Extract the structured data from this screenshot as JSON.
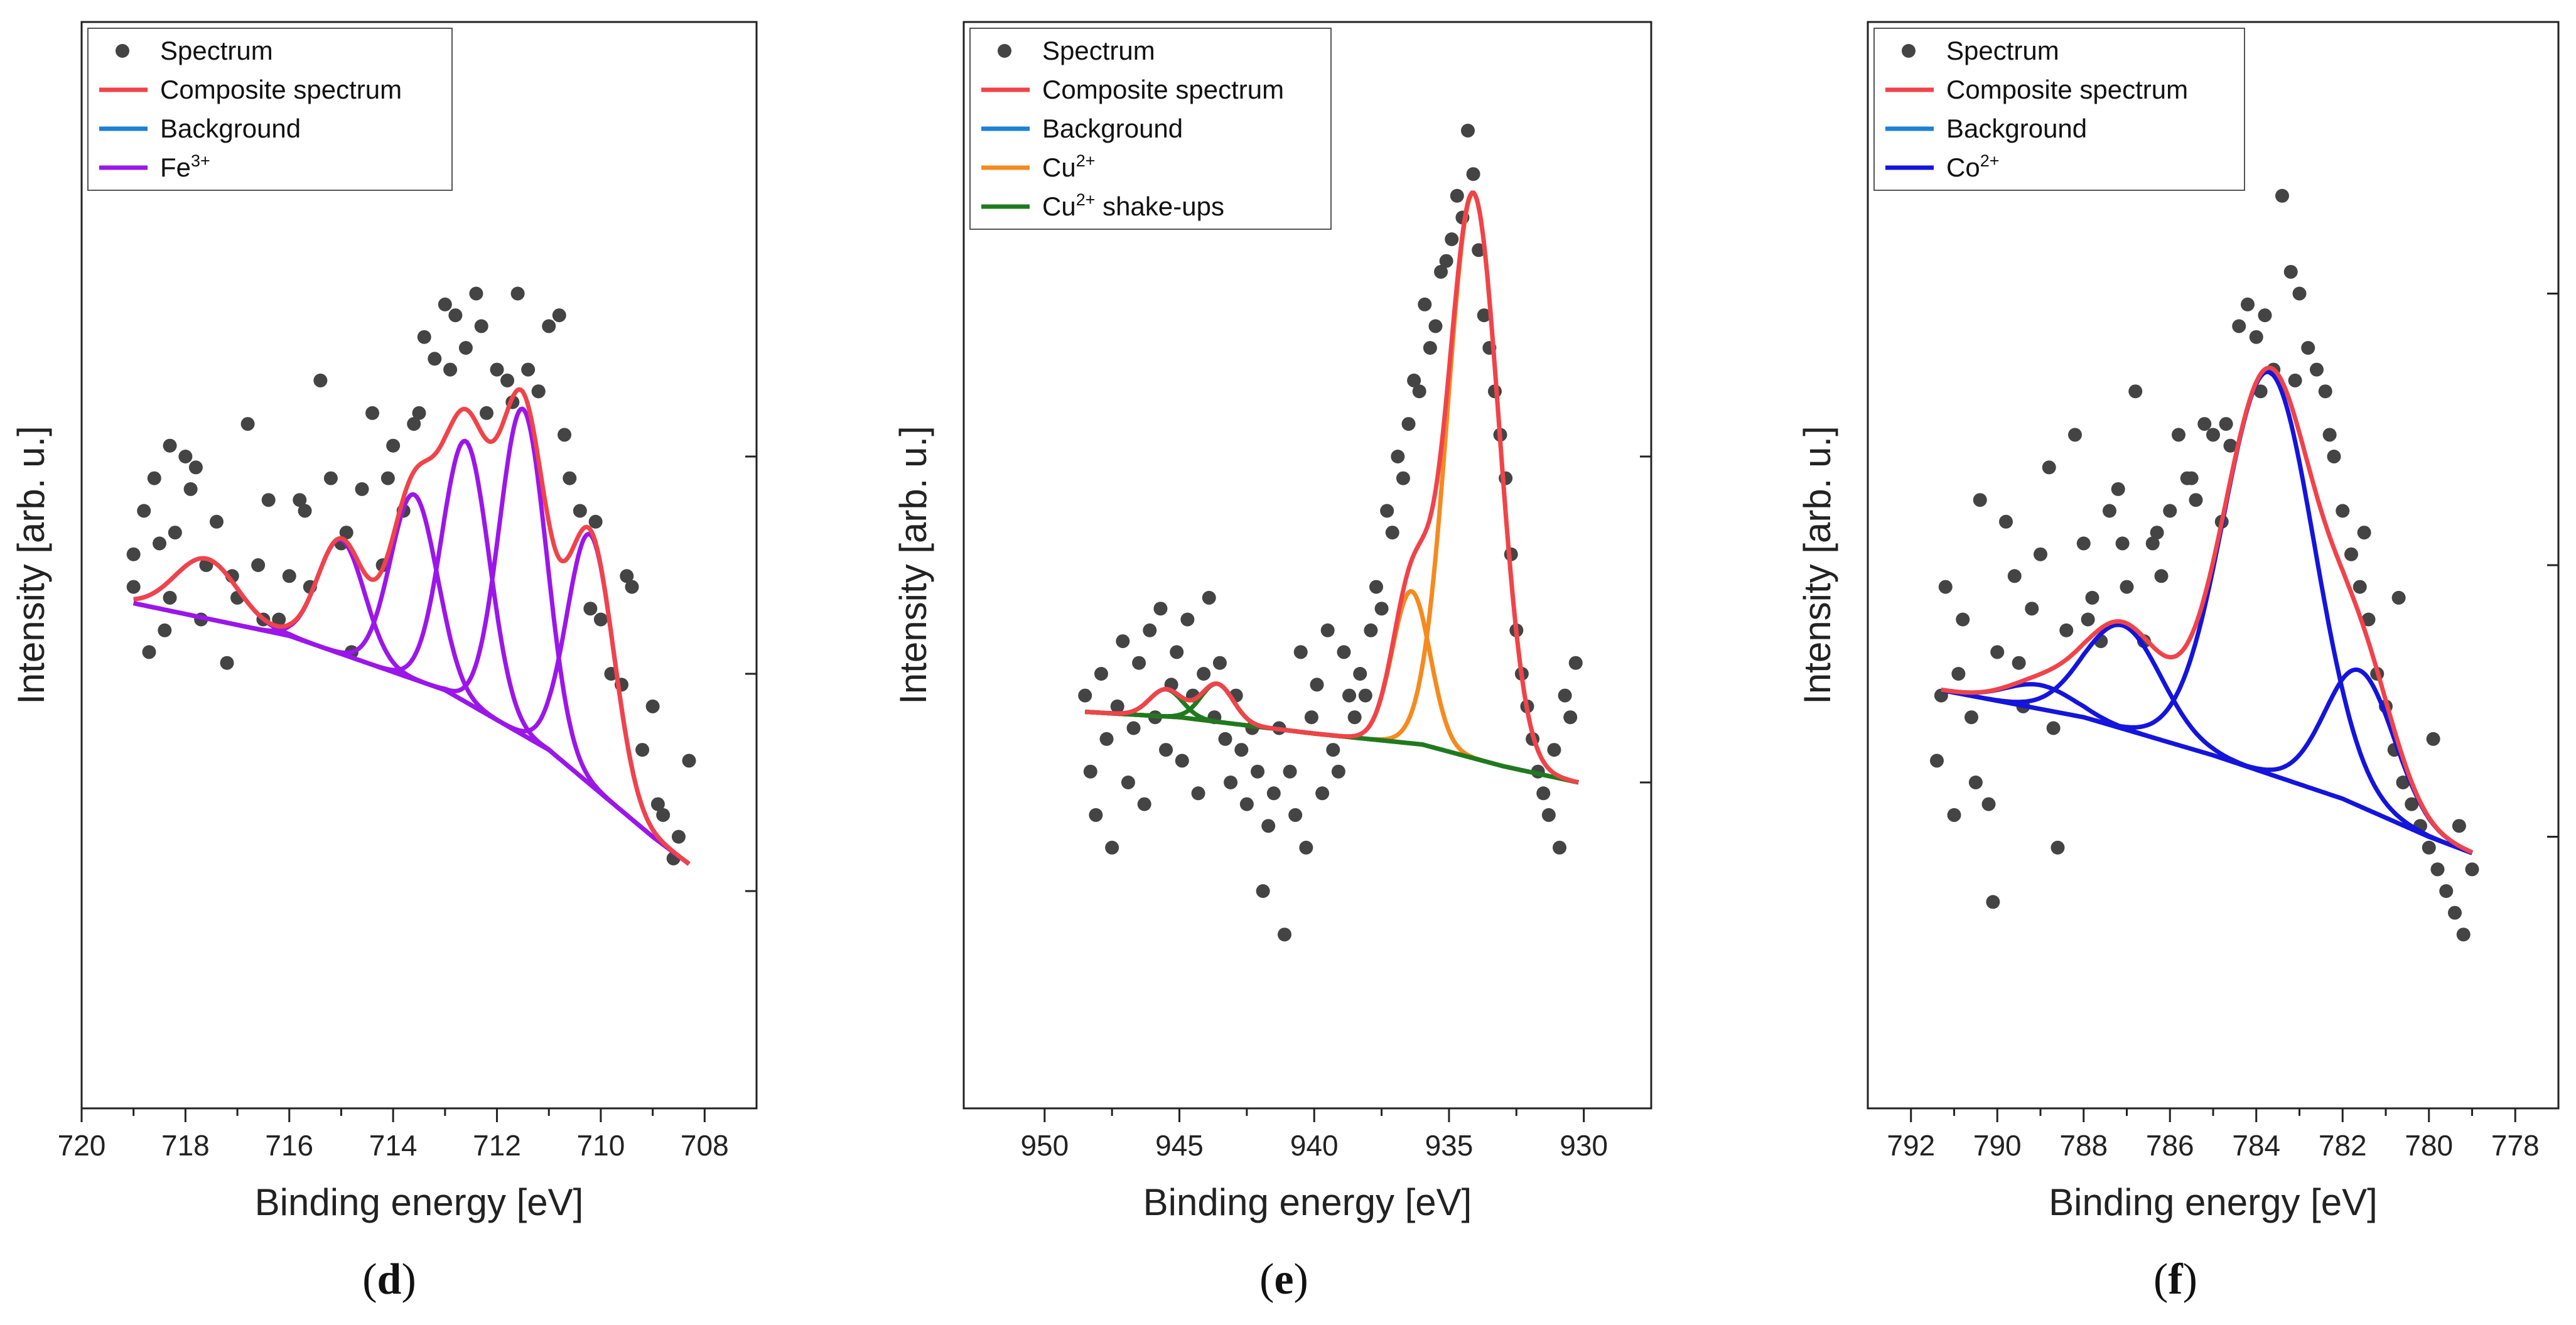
{
  "panel_labels": [
    "d",
    "e",
    "f"
  ],
  "chart_data": [
    {
      "type": "line",
      "panel": "d",
      "xlabel": "Binding energy [eV]",
      "ylabel": "Intensity [arb. u.]",
      "xlim": [
        720,
        707
      ],
      "ylim": [
        0,
        100
      ],
      "xticks": [
        720,
        718,
        716,
        714,
        712,
        710,
        708
      ],
      "xtick_labels": [
        "720",
        "718",
        "716",
        "714",
        "712",
        "710",
        "708"
      ],
      "yticks_right": [
        20,
        40,
        60
      ],
      "legend": [
        {
          "label": "Spectrum",
          "kind": "dot",
          "color": "#444444"
        },
        {
          "label": "Composite spectrum",
          "kind": "line",
          "color": "#f0434a"
        },
        {
          "label": "Background",
          "kind": "line",
          "color": "#1e7fd6"
        },
        {
          "label": "Fe",
          "sup": "3+",
          "kind": "line",
          "color": "#9b16ea"
        }
      ],
      "background": {
        "x": [
          719,
          716,
          713,
          711,
          709,
          708.3
        ],
        "y": [
          46.5,
          43.5,
          38.5,
          33,
          25,
          22.5
        ]
      },
      "components": [
        {
          "center": 717.6,
          "amp": 5.5,
          "sigma": 0.6
        },
        {
          "center": 715.0,
          "amp": 10.5,
          "sigma": 0.45
        },
        {
          "center": 713.6,
          "amp": 17.0,
          "sigma": 0.45
        },
        {
          "center": 712.6,
          "amp": 24.0,
          "sigma": 0.45
        },
        {
          "center": 711.5,
          "amp": 30.0,
          "sigma": 0.45
        },
        {
          "center": 710.2,
          "amp": 23.0,
          "sigma": 0.45
        }
      ],
      "components_color": "#9b16ea",
      "scatter": {
        "x": [
          719.0,
          718.8,
          718.6,
          718.5,
          718.4,
          718.3,
          718.2,
          718.0,
          717.9,
          717.7,
          717.6,
          717.4,
          717.2,
          717.0,
          716.8,
          716.6,
          716.4,
          716.2,
          716.0,
          715.8,
          715.6,
          715.4,
          715.2,
          715.0,
          714.8,
          714.6,
          714.4,
          714.2,
          714.0,
          713.8,
          713.6,
          713.4,
          713.2,
          713.0,
          712.8,
          712.6,
          712.4,
          712.2,
          712.0,
          711.8,
          711.6,
          711.4,
          711.2,
          711.0,
          710.8,
          710.6,
          710.4,
          710.2,
          710.0,
          709.8,
          709.6,
          709.4,
          709.2,
          709.0,
          708.8,
          708.6,
          708.5,
          708.3,
          719.0,
          718.7,
          718.3,
          717.8,
          717.1,
          716.5,
          715.7,
          714.9,
          714.1,
          713.5,
          712.9,
          712.3,
          711.7,
          711.2,
          710.7,
          710.1,
          709.5,
          708.9
        ],
        "y": [
          48,
          55,
          58,
          52,
          44,
          47,
          53,
          60,
          57,
          45,
          50,
          54,
          41,
          47,
          63,
          50,
          56,
          45,
          49,
          56,
          48,
          67,
          58,
          52,
          42,
          57,
          64,
          50,
          61,
          55,
          63,
          71,
          69,
          74,
          73,
          70,
          75,
          64,
          68,
          67,
          75,
          68,
          66,
          72,
          73,
          58,
          55,
          46,
          45,
          40,
          39,
          48,
          33,
          37,
          27,
          23,
          25,
          32,
          51,
          42,
          61,
          59,
          49,
          45,
          55,
          53,
          58,
          64,
          68,
          72,
          65,
          66,
          62,
          54,
          49,
          28
        ]
      }
    },
    {
      "type": "line",
      "panel": "e",
      "xlabel": "Binding energy [eV]",
      "ylabel": "Intensity [arb. u.]",
      "xlim": [
        953,
        927.5
      ],
      "ylim": [
        0,
        100
      ],
      "xticks": [
        950,
        945,
        940,
        935,
        930
      ],
      "xtick_labels": [
        "950",
        "945",
        "940",
        "935",
        "930"
      ],
      "yticks_right": [
        30,
        60
      ],
      "legend": [
        {
          "label": "Spectrum",
          "kind": "dot",
          "color": "#444444"
        },
        {
          "label": "Composite spectrum",
          "kind": "line",
          "color": "#f0434a"
        },
        {
          "label": "Background",
          "kind": "line",
          "color": "#1e7fd6"
        },
        {
          "label": "Cu",
          "sup": "2+",
          "kind": "line",
          "color": "#f58a1f"
        },
        {
          "label": "Cu",
          "sup": "2+",
          "suffix": " shake-ups",
          "kind": "line",
          "color": "#1f7a1f"
        }
      ],
      "background": {
        "x": [
          948.5,
          945,
          940,
          936,
          933,
          930.2
        ],
        "y": [
          36.5,
          36,
          34.5,
          33.5,
          31.5,
          30
        ]
      },
      "components": [
        {
          "center": 945.5,
          "amp": 2.5,
          "sigma": 0.6,
          "group": "shake"
        },
        {
          "center": 943.6,
          "amp": 3.5,
          "sigma": 0.6,
          "group": "shake"
        },
        {
          "center": 936.4,
          "amp": 14.0,
          "sigma": 0.7,
          "group": "cu"
        },
        {
          "center": 934.1,
          "amp": 52.0,
          "sigma": 0.95,
          "group": "cu"
        }
      ],
      "scatter": {
        "x": [
          948.5,
          948.3,
          948.1,
          947.9,
          947.7,
          947.5,
          947.3,
          947.1,
          946.9,
          946.7,
          946.5,
          946.3,
          946.1,
          945.9,
          945.7,
          945.5,
          945.3,
          945.1,
          944.9,
          944.7,
          944.5,
          944.3,
          944.1,
          943.9,
          943.7,
          943.5,
          943.3,
          943.1,
          942.9,
          942.7,
          942.5,
          942.3,
          942.1,
          941.9,
          941.7,
          941.5,
          941.3,
          941.1,
          940.9,
          940.7,
          940.5,
          940.3,
          940.1,
          939.9,
          939.7,
          939.5,
          939.3,
          939.1,
          938.9,
          938.7,
          938.5,
          938.3,
          938.1,
          937.9,
          937.7,
          937.5,
          937.3,
          937.1,
          936.9,
          936.7,
          936.5,
          936.3,
          936.1,
          935.9,
          935.7,
          935.5,
          935.3,
          935.1,
          934.9,
          934.7,
          934.5,
          934.3,
          934.1,
          933.9,
          933.7,
          933.5,
          933.3,
          933.1,
          932.9,
          932.7,
          932.5,
          932.3,
          932.1,
          931.9,
          931.7,
          931.5,
          931.3,
          931.1,
          930.9,
          930.7,
          930.5,
          930.3
        ],
        "y": [
          38,
          31,
          27,
          40,
          34,
          24,
          37,
          43,
          30,
          35,
          41,
          28,
          44,
          36,
          46,
          33,
          39,
          42,
          32,
          45,
          38,
          29,
          40,
          47,
          36,
          41,
          34,
          30,
          38,
          33,
          28,
          35,
          31,
          20,
          26,
          29,
          35,
          16,
          31,
          27,
          42,
          24,
          36,
          39,
          29,
          44,
          33,
          31,
          42,
          38,
          36,
          40,
          38,
          44,
          48,
          46,
          55,
          53,
          60,
          58,
          63,
          67,
          66,
          74,
          70,
          72,
          77,
          78,
          80,
          84,
          82,
          90,
          86,
          79,
          73,
          70,
          66,
          62,
          58,
          51,
          44,
          40,
          37,
          34,
          31,
          29,
          27,
          33,
          24,
          38,
          36,
          41
        ]
      }
    },
    {
      "type": "line",
      "panel": "f",
      "xlabel": "Binding energy [eV]",
      "ylabel": "Intensity [arb. u.]",
      "xlim": [
        793,
        777
      ],
      "ylim": [
        0,
        100
      ],
      "xticks": [
        792,
        790,
        788,
        786,
        784,
        782,
        780,
        778
      ],
      "xtick_labels": [
        "792",
        "790",
        "788",
        "786",
        "784",
        "782",
        "780",
        "778"
      ],
      "yticks_right": [
        25,
        50,
        75
      ],
      "legend": [
        {
          "label": "Spectrum",
          "kind": "dot",
          "color": "#444444"
        },
        {
          "label": "Composite spectrum",
          "kind": "line",
          "color": "#f0434a"
        },
        {
          "label": "Background",
          "kind": "line",
          "color": "#1e7fd6"
        },
        {
          "label": "Co",
          "sup": "2+",
          "kind": "line",
          "color": "#1414dd"
        }
      ],
      "background": {
        "x": [
          791.3,
          788,
          785,
          782,
          780,
          779
        ],
        "y": [
          38.5,
          36,
          32.5,
          28.5,
          25,
          23.5
        ]
      },
      "components": [
        {
          "center": 789.0,
          "amp": 2.2,
          "sigma": 0.8
        },
        {
          "center": 787.1,
          "amp": 9.5,
          "sigma": 0.9
        },
        {
          "center": 783.7,
          "amp": 37.0,
          "sigma": 1.05
        },
        {
          "center": 781.6,
          "amp": 12.5,
          "sigma": 0.8
        }
      ],
      "components_color": "#1414dd",
      "scatter": {
        "x": [
          791.4,
          791.2,
          791.0,
          790.8,
          790.6,
          790.4,
          790.2,
          790.0,
          789.8,
          789.6,
          789.4,
          789.2,
          789.0,
          788.8,
          788.6,
          788.4,
          788.2,
          788.0,
          787.8,
          787.6,
          787.4,
          787.2,
          787.0,
          786.8,
          786.6,
          786.4,
          786.2,
          786.0,
          785.8,
          785.6,
          785.4,
          785.2,
          785.0,
          784.8,
          784.6,
          784.4,
          784.2,
          784.0,
          783.8,
          783.6,
          783.4,
          783.2,
          783.0,
          782.8,
          782.6,
          782.4,
          782.2,
          782.0,
          781.8,
          781.6,
          781.4,
          781.2,
          781.0,
          780.8,
          780.6,
          780.4,
          780.2,
          780.0,
          779.8,
          779.6,
          779.4,
          779.2,
          779.0,
          791.3,
          790.9,
          790.5,
          790.1,
          789.5,
          788.7,
          787.9,
          787.1,
          786.3,
          785.5,
          784.7,
          783.9,
          783.1,
          782.3,
          781.5,
          780.7,
          779.9,
          779.3
        ],
        "y": [
          32,
          48,
          27,
          45,
          36,
          56,
          28,
          42,
          54,
          49,
          37,
          46,
          51,
          59,
          24,
          44,
          62,
          52,
          47,
          43,
          55,
          57,
          48,
          66,
          43,
          52,
          49,
          55,
          62,
          58,
          56,
          63,
          62,
          54,
          61,
          72,
          74,
          71,
          73,
          68,
          84,
          77,
          75,
          70,
          68,
          66,
          60,
          55,
          51,
          48,
          45,
          40,
          37,
          33,
          30,
          28,
          26,
          24,
          22,
          20,
          18,
          16,
          22,
          38,
          40,
          30,
          19,
          41,
          35,
          45,
          52,
          53,
          58,
          63,
          66,
          67,
          62,
          53,
          47,
          34,
          26
        ]
      }
    }
  ]
}
